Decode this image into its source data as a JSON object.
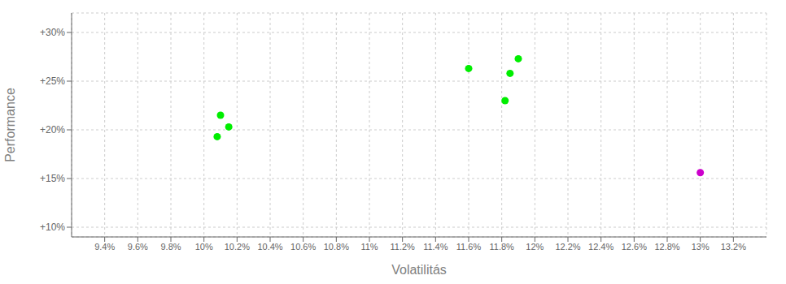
{
  "chart_data": {
    "type": "scatter",
    "x": [
      10.1,
      10.15,
      10.08,
      11.6,
      11.85,
      11.9,
      11.82,
      13.0
    ],
    "values": [
      21.5,
      20.3,
      19.3,
      26.3,
      25.8,
      27.3,
      23.0,
      15.6
    ],
    "colors": [
      "#00ee00",
      "#00ee00",
      "#00ee00",
      "#00ee00",
      "#00ee00",
      "#00ee00",
      "#00ee00",
      "#cc00cc"
    ],
    "xlabel": "Volatilitás",
    "ylabel": "Performance",
    "xlim": [
      9.2,
      13.4
    ],
    "ylim": [
      9.0,
      32.0
    ],
    "xticks": [
      {
        "value": 9.4,
        "label": "9.4%"
      },
      {
        "value": 9.6,
        "label": "9.6%"
      },
      {
        "value": 9.8,
        "label": "9.8%"
      },
      {
        "value": 10.0,
        "label": "10%"
      },
      {
        "value": 10.2,
        "label": "10.2%"
      },
      {
        "value": 10.4,
        "label": "10.4%"
      },
      {
        "value": 10.6,
        "label": "10.6%"
      },
      {
        "value": 10.8,
        "label": "10.8%"
      },
      {
        "value": 11.0,
        "label": "11%"
      },
      {
        "value": 11.2,
        "label": "11.2%"
      },
      {
        "value": 11.4,
        "label": "11.4%"
      },
      {
        "value": 11.6,
        "label": "11.6%"
      },
      {
        "value": 11.8,
        "label": "11.8%"
      },
      {
        "value": 12.0,
        "label": "12%"
      },
      {
        "value": 12.2,
        "label": "12.2%"
      },
      {
        "value": 12.4,
        "label": "12.4%"
      },
      {
        "value": 12.6,
        "label": "12.6%"
      },
      {
        "value": 12.8,
        "label": "12.8%"
      },
      {
        "value": 13.0,
        "label": "13%"
      },
      {
        "value": 13.2,
        "label": "13.2%"
      }
    ],
    "yticks": [
      {
        "value": 10.0,
        "label": "+10%"
      },
      {
        "value": 15.0,
        "label": "+15%"
      },
      {
        "value": 20.0,
        "label": "+20%"
      },
      {
        "value": 25.0,
        "label": "+25%"
      },
      {
        "value": 30.0,
        "label": "+30%"
      }
    ],
    "grid": true
  }
}
